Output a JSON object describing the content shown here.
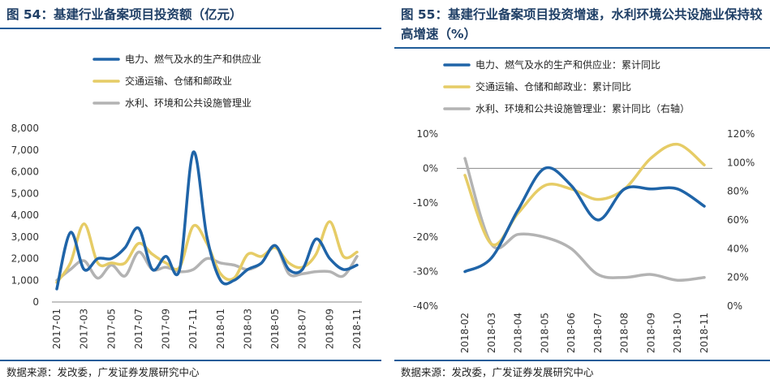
{
  "left": {
    "title": "图 54：基建行业备案项目投资额（亿元）",
    "source": "数据来源：发改委，广发证券发展研究中心"
  },
  "right": {
    "title": "图 55：基建行业备案项目投资增速，水利环境公共设施业保持较高增速（%）",
    "source": "数据来源：发改委，广发证券发展研究中心"
  },
  "colors": {
    "blue": "#1f64a8",
    "yellow": "#e6cc66",
    "gray": "#b3b3b3",
    "rule": "#1f5c99"
  },
  "chart_data": [
    {
      "type": "line",
      "title": "图 54：基建行业备案项目投资额（亿元）",
      "x": [
        "2017-01",
        "2017-02",
        "2017-03",
        "2017-04",
        "2017-05",
        "2017-06",
        "2017-07",
        "2017-08",
        "2017-09",
        "2017-10",
        "2017-11",
        "2017-12",
        "2018-01",
        "2018-02",
        "2018-03",
        "2018-04",
        "2018-05",
        "2018-06",
        "2018-07",
        "2018-08",
        "2018-09",
        "2018-10",
        "2018-11"
      ],
      "xtick_labels": [
        "2017-01",
        "2017-03",
        "2017-05",
        "2017-07",
        "2017-09",
        "2017-11",
        "2018-01",
        "2018-03",
        "2018-05",
        "2018-07",
        "2018-09",
        "2018-11"
      ],
      "series": [
        {
          "name": "电力、燃气及水的生产和供应业",
          "color": "#1f64a8",
          "values": [
            600,
            3200,
            1500,
            2000,
            2000,
            2500,
            3400,
            1500,
            2100,
            1500,
            6900,
            3000,
            1000,
            1000,
            1500,
            1800,
            2600,
            1500,
            1500,
            2900,
            2000,
            1500,
            1700
          ]
        },
        {
          "name": "交通运输、仓储和邮政业",
          "color": "#e6cc66",
          "values": [
            900,
            1800,
            3600,
            1800,
            1800,
            1800,
            2700,
            2200,
            1800,
            1600,
            3500,
            2700,
            1300,
            1100,
            2200,
            2100,
            2500,
            1800,
            1600,
            2200,
            3700,
            2100,
            2300
          ]
        },
        {
          "name": "水利、环境和公共设施管理业",
          "color": "#b3b3b3",
          "values": [
            1000,
            1500,
            1900,
            1100,
            1700,
            1200,
            2300,
            1500,
            1600,
            1400,
            1500,
            2000,
            1800,
            1700,
            1500,
            1800,
            2600,
            1300,
            1300,
            1400,
            1400,
            1200,
            2100
          ]
        }
      ],
      "ylim": [
        0,
        8000
      ],
      "yticks": [
        "0",
        "1,000",
        "2,000",
        "3,000",
        "4,000",
        "5,000",
        "6,000",
        "7,000",
        "8,000"
      ],
      "xlabel": "",
      "ylabel": "",
      "legend": "top"
    },
    {
      "type": "line",
      "title": "图 55：基建行业备案项目投资增速，水利环境公共设施业保持较高增速（%）",
      "x": [
        "2018-02",
        "2018-03",
        "2018-04",
        "2018-05",
        "2018-06",
        "2018-07",
        "2018-08",
        "2018-09",
        "2018-10",
        "2018-11"
      ],
      "series": [
        {
          "name": "电力、燃气及水的生产和供应业：累计同比",
          "color": "#1f64a8",
          "axis": "left",
          "values": [
            -30,
            -26,
            -12,
            0,
            -5,
            -15,
            -6,
            -6,
            -6,
            -11
          ]
        },
        {
          "name": "交通运输、仓储和邮政业：累计同比",
          "color": "#e6cc66",
          "axis": "left",
          "values": [
            -2,
            -22,
            -13,
            -5,
            -6,
            -9,
            -6,
            3,
            7,
            1
          ]
        },
        {
          "name": "水利、环境和公共设施管理业：累计同比（右轴）",
          "color": "#b3b3b3",
          "axis": "right",
          "values": [
            103,
            43,
            50,
            48,
            40,
            22,
            20,
            22,
            18,
            20
          ]
        }
      ],
      "ylim_left": [
        -40,
        10
      ],
      "ylim_right": [
        0,
        120
      ],
      "yticks_left": [
        "-40%",
        "-30%",
        "-20%",
        "-10%",
        "0%",
        "10%"
      ],
      "yticks_right": [
        "0%",
        "20%",
        "40%",
        "60%",
        "80%",
        "100%",
        "120%"
      ],
      "xlabel": "",
      "ylabel": "",
      "legend": "top"
    }
  ]
}
